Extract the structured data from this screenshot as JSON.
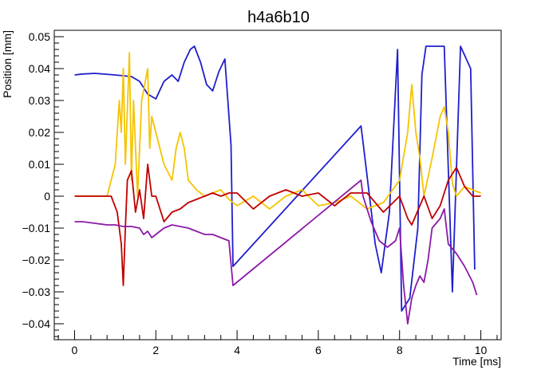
{
  "chart_data": {
    "type": "line",
    "title": "h4a6b10",
    "xlabel": "Time [ms]",
    "ylabel": "Position [mm]",
    "xlim": [
      -0.5,
      10.5
    ],
    "ylim": [
      -0.045,
      0.052
    ],
    "x_ticks": [
      0,
      2,
      4,
      6,
      8,
      10
    ],
    "y_ticks": [
      -0.04,
      -0.03,
      -0.02,
      -0.01,
      0,
      0.01,
      0.02,
      0.03,
      0.04,
      0.05
    ],
    "x_tick_labels": [
      "0",
      "2",
      "4",
      "6",
      "8",
      "10"
    ],
    "y_tick_labels": [
      "−0.04",
      "−0.03",
      "−0.02",
      "−0.01",
      "0",
      "0.01",
      "0.02",
      "0.03",
      "0.04",
      "0.05"
    ],
    "grid": false,
    "legend": "none",
    "series": [
      {
        "color": "#1f1fcc",
        "x": [
          0,
          0.2,
          0.5,
          1.0,
          1.4,
          1.6,
          1.8,
          2.0,
          2.2,
          2.4,
          2.55,
          2.7,
          2.85,
          2.95,
          3.1,
          3.25,
          3.4,
          3.55,
          3.7,
          3.85,
          3.9,
          7.05,
          7.1,
          7.4,
          7.55,
          7.75,
          7.95,
          8.05,
          8.25,
          8.45,
          8.55,
          8.65,
          9.0,
          9.1,
          9.3,
          9.5,
          9.75,
          9.85
        ],
        "y": [
          0.038,
          0.0383,
          0.0385,
          0.038,
          0.0375,
          0.036,
          0.032,
          0.0305,
          0.036,
          0.038,
          0.036,
          0.042,
          0.046,
          0.047,
          0.042,
          0.035,
          0.033,
          0.039,
          0.043,
          0.016,
          -0.022,
          0.022,
          0.017,
          -0.015,
          -0.024,
          -0.005,
          0.046,
          -0.036,
          -0.032,
          -0.01,
          0.038,
          0.047,
          0.047,
          0.047,
          -0.03,
          0.047,
          0.04,
          -0.023
        ]
      },
      {
        "color": "#f5c400",
        "x": [
          0,
          0.5,
          0.8,
          1.0,
          1.1,
          1.15,
          1.2,
          1.25,
          1.35,
          1.4,
          1.45,
          1.55,
          1.65,
          1.8,
          1.85,
          1.9,
          2.0,
          2.2,
          2.4,
          2.5,
          2.6,
          2.7,
          2.8,
          3.0,
          3.2,
          3.4,
          3.6,
          3.8,
          4.0,
          4.4,
          4.8,
          5.2,
          5.6,
          6.0,
          6.4,
          6.8,
          7.2,
          7.6,
          8.0,
          8.2,
          8.3,
          8.4,
          8.5,
          8.6,
          8.8,
          9.0,
          9.1,
          9.2,
          9.3,
          9.4,
          9.6,
          9.8,
          10.0
        ],
        "y": [
          0,
          0,
          0,
          0.01,
          0.03,
          0.02,
          0.04,
          0.01,
          0.045,
          0.005,
          0.03,
          0.0,
          0.03,
          0.04,
          0.015,
          0.025,
          0.02,
          0.01,
          0.005,
          0.015,
          0.02,
          0.015,
          0.005,
          0.002,
          0.0,
          0.001,
          0.002,
          -0.001,
          -0.003,
          0.0,
          -0.004,
          0.0,
          0.002,
          -0.003,
          -0.002,
          0.0,
          -0.004,
          -0.002,
          0.005,
          0.02,
          0.035,
          0.02,
          0.012,
          0.0,
          0.012,
          0.025,
          0.028,
          0.02,
          0.004,
          0.0,
          0.003,
          0.002,
          0.001
        ]
      },
      {
        "color": "#c00000",
        "x": [
          0,
          0.5,
          0.9,
          1.05,
          1.15,
          1.2,
          1.25,
          1.3,
          1.4,
          1.5,
          1.6,
          1.7,
          1.8,
          1.9,
          2.0,
          2.2,
          2.4,
          2.6,
          2.8,
          3.0,
          3.2,
          3.4,
          3.6,
          3.8,
          4.0,
          4.4,
          4.8,
          5.2,
          5.6,
          6.0,
          6.4,
          6.8,
          7.2,
          7.6,
          8.0,
          8.2,
          8.3,
          8.4,
          8.5,
          8.6,
          8.8,
          9.0,
          9.2,
          9.4,
          9.6,
          9.8,
          10.0
        ],
        "y": [
          0,
          0,
          0,
          -0.005,
          -0.015,
          -0.028,
          -0.01,
          0.005,
          0.008,
          -0.005,
          0.002,
          -0.007,
          0.01,
          0.0,
          0.0,
          -0.008,
          -0.005,
          -0.004,
          -0.002,
          -0.001,
          0.0,
          0.001,
          0.0,
          0.001,
          0.001,
          -0.004,
          0.0,
          0.002,
          0.0,
          0.001,
          -0.003,
          0.001,
          0.001,
          -0.005,
          0.0,
          -0.007,
          -0.009,
          -0.006,
          -0.003,
          0.0,
          -0.007,
          -0.003,
          0.005,
          0.009,
          0.003,
          0.0,
          0.0
        ]
      },
      {
        "color": "#8c1aa8",
        "x": [
          0,
          0.2,
          0.5,
          0.8,
          1.0,
          1.2,
          1.4,
          1.6,
          1.7,
          1.8,
          1.9,
          2.0,
          2.2,
          2.4,
          2.6,
          2.8,
          3.0,
          3.2,
          3.4,
          3.6,
          3.8,
          3.9,
          7.05,
          7.1,
          7.3,
          7.5,
          7.7,
          7.9,
          8.0,
          8.1,
          8.2,
          8.3,
          8.4,
          8.5,
          8.6,
          8.7,
          8.8,
          9.0,
          9.1,
          9.2,
          9.4,
          9.6,
          9.8,
          9.9
        ],
        "y": [
          -0.008,
          -0.008,
          -0.0085,
          -0.009,
          -0.009,
          -0.0095,
          -0.0095,
          -0.01,
          -0.012,
          -0.011,
          -0.013,
          -0.012,
          -0.01,
          -0.009,
          -0.0095,
          -0.01,
          -0.011,
          -0.012,
          -0.012,
          -0.013,
          -0.014,
          -0.028,
          0.005,
          0.0,
          -0.008,
          -0.014,
          -0.016,
          -0.014,
          -0.01,
          -0.028,
          -0.04,
          -0.032,
          -0.028,
          -0.025,
          -0.027,
          -0.02,
          -0.01,
          -0.007,
          -0.004,
          -0.015,
          -0.018,
          -0.022,
          -0.027,
          -0.031
        ]
      }
    ]
  }
}
